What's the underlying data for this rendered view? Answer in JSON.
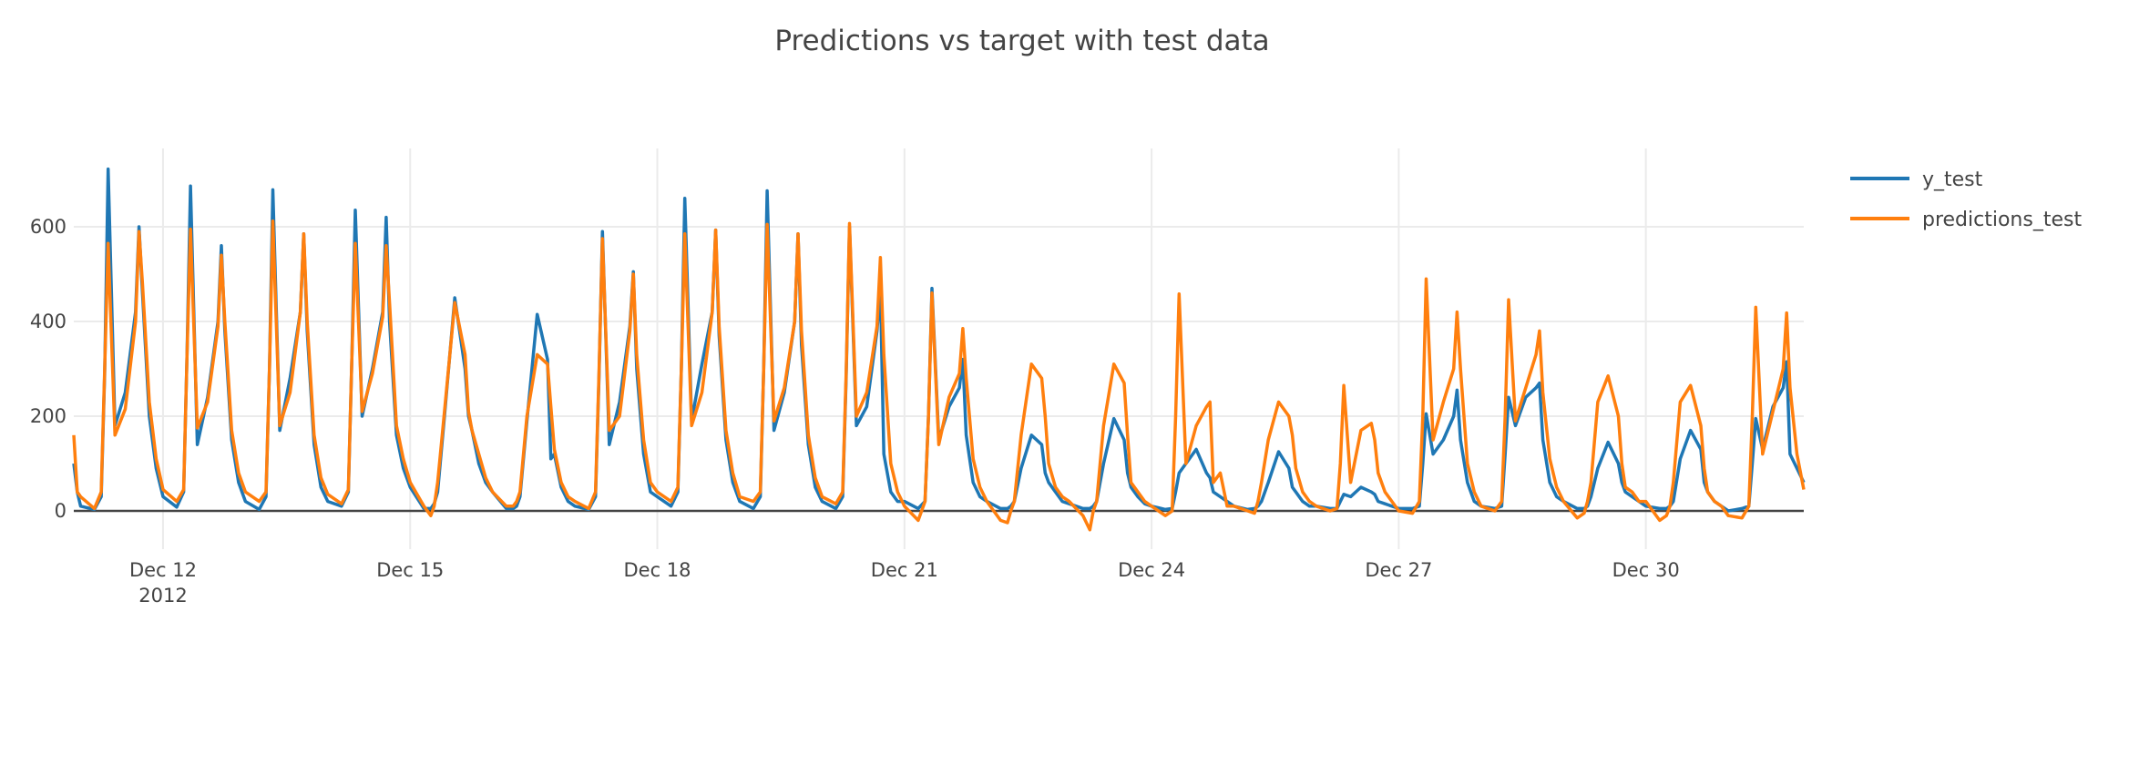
{
  "chart_data": {
    "type": "line",
    "title": "Predictions vs target with test data",
    "xaxis": {
      "type": "date",
      "range": [
        "2012-12-10 22:00",
        "2012-12-31 22:00"
      ],
      "grid": true,
      "ticks": [
        {
          "date": "2012-12-12",
          "label": "Dec 12",
          "sublabel": "2012"
        },
        {
          "date": "2012-12-15",
          "label": "Dec 15"
        },
        {
          "date": "2012-12-18",
          "label": "Dec 18"
        },
        {
          "date": "2012-12-21",
          "label": "Dec 21"
        },
        {
          "date": "2012-12-24",
          "label": "Dec 24"
        },
        {
          "date": "2012-12-27",
          "label": "Dec 27"
        },
        {
          "date": "2012-12-30",
          "label": "Dec 30"
        }
      ]
    },
    "yaxis": {
      "range": [
        -80,
        765
      ],
      "grid": true,
      "zeroline": true,
      "ticks": [
        {
          "value": 0,
          "label": "0"
        },
        {
          "value": 200,
          "label": "200"
        },
        {
          "value": 400,
          "label": "400"
        },
        {
          "value": 600,
          "label": "600"
        }
      ]
    },
    "legend": {
      "placement": "top-right"
    },
    "series": [
      {
        "name": "y_test",
        "color": "#1f77b4"
      },
      {
        "name": "predictions_test",
        "color": "#ff7f0e"
      }
    ],
    "hours": [
      0,
      4,
      6,
      7,
      8,
      10,
      13,
      16,
      17,
      18,
      20,
      22
    ],
    "days": [
      {
        "date": "2012-12-10",
        "hours": [
          22,
          23
        ],
        "y_test": [
          100,
          40
        ],
        "predictions_test": [
          160,
          40
        ]
      },
      {
        "date": "2012-12-11",
        "y_test": [
          10,
          3,
          30,
          290,
          722,
          180,
          250,
          420,
          600,
          460,
          200,
          90
        ],
        "predictions_test": [
          30,
          5,
          40,
          300,
          565,
          160,
          215,
          400,
          590,
          480,
          230,
          110
        ]
      },
      {
        "date": "2012-12-12",
        "y_test": [
          30,
          8,
          40,
          330,
          686,
          140,
          240,
          400,
          560,
          380,
          150,
          60
        ],
        "predictions_test": [
          45,
          20,
          45,
          330,
          595,
          175,
          230,
          390,
          540,
          400,
          170,
          80
        ]
      },
      {
        "date": "2012-12-13",
        "y_test": [
          20,
          3,
          30,
          300,
          678,
          170,
          280,
          420,
          585,
          380,
          140,
          50
        ],
        "predictions_test": [
          40,
          20,
          40,
          300,
          612,
          180,
          250,
          420,
          585,
          400,
          160,
          70
        ]
      },
      {
        "date": "2012-12-14",
        "y_test": [
          20,
          10,
          40,
          320,
          635,
          200,
          300,
          420,
          620,
          400,
          160,
          90
        ],
        "predictions_test": [
          35,
          15,
          45,
          320,
          565,
          210,
          290,
          410,
          560,
          440,
          180,
          110
        ]
      },
      {
        "date": "2012-12-15",
        "y_test": [
          50,
          5,
          5,
          15,
          40,
          200,
          450,
          300,
          200,
          170,
          100,
          60
        ],
        "predictions_test": [
          60,
          10,
          -10,
          10,
          60,
          210,
          440,
          330,
          210,
          170,
          120,
          70
        ]
      },
      {
        "date": "2012-12-16",
        "y_test": [
          40,
          5,
          5,
          10,
          30,
          190,
          415,
          320,
          110,
          120,
          50,
          20
        ],
        "predictions_test": [
          40,
          10,
          10,
          20,
          40,
          200,
          330,
          310,
          220,
          130,
          60,
          30
        ]
      },
      {
        "date": "2012-12-17",
        "y_test": [
          10,
          3,
          30,
          280,
          590,
          140,
          230,
          390,
          505,
          300,
          120,
          40
        ],
        "predictions_test": [
          20,
          5,
          40,
          290,
          575,
          170,
          200,
          380,
          500,
          330,
          150,
          60
        ]
      },
      {
        "date": "2012-12-18",
        "y_test": [
          30,
          10,
          40,
          300,
          660,
          190,
          310,
          420,
          593,
          370,
          150,
          60
        ],
        "predictions_test": [
          40,
          20,
          50,
          300,
          585,
          180,
          250,
          420,
          593,
          390,
          170,
          80
        ]
      },
      {
        "date": "2012-12-19",
        "y_test": [
          20,
          5,
          30,
          300,
          676,
          170,
          250,
          400,
          585,
          350,
          140,
          50
        ],
        "predictions_test": [
          30,
          20,
          40,
          300,
          605,
          190,
          260,
          400,
          585,
          380,
          160,
          70
        ]
      },
      {
        "date": "2012-12-20",
        "y_test": [
          20,
          5,
          30,
          280,
          600,
          180,
          220,
          380,
          470,
          120,
          40,
          20
        ],
        "predictions_test": [
          30,
          15,
          40,
          290,
          607,
          200,
          250,
          390,
          535,
          330,
          100,
          40
        ]
      },
      {
        "date": "2012-12-21",
        "y_test": [
          20,
          5,
          20,
          200,
          470,
          150,
          220,
          260,
          320,
          160,
          60,
          30
        ],
        "predictions_test": [
          10,
          -20,
          20,
          200,
          460,
          140,
          240,
          290,
          385,
          280,
          110,
          50
        ]
      },
      {
        "date": "2012-12-22",
        "y_test": [
          20,
          5,
          5,
          10,
          20,
          90,
          160,
          140,
          80,
          60,
          40,
          20
        ],
        "predictions_test": [
          20,
          -20,
          -25,
          0,
          20,
          160,
          310,
          280,
          200,
          100,
          50,
          30
        ]
      },
      {
        "date": "2012-12-23",
        "y_test": [
          15,
          5,
          5,
          10,
          20,
          100,
          195,
          150,
          80,
          50,
          30,
          15
        ],
        "predictions_test": [
          20,
          -10,
          -40,
          0,
          20,
          180,
          310,
          270,
          160,
          60,
          40,
          20
        ]
      },
      {
        "date": "2012-12-24",
        "y_test": [
          10,
          3,
          5,
          40,
          80,
          100,
          130,
          80,
          70,
          40,
          30,
          20
        ],
        "predictions_test": [
          10,
          -10,
          0,
          200,
          458,
          100,
          180,
          220,
          230,
          60,
          80,
          10
        ]
      },
      {
        "date": "2012-12-25",
        "y_test": [
          10,
          3,
          5,
          10,
          20,
          60,
          125,
          90,
          50,
          40,
          20,
          10
        ],
        "predictions_test": [
          10,
          0,
          -5,
          20,
          60,
          150,
          230,
          200,
          160,
          90,
          40,
          20
        ]
      },
      {
        "date": "2012-12-26",
        "y_test": [
          10,
          5,
          5,
          20,
          35,
          30,
          50,
          40,
          35,
          20,
          15,
          10
        ],
        "predictions_test": [
          10,
          0,
          5,
          100,
          265,
          60,
          170,
          185,
          150,
          80,
          40,
          20
        ]
      },
      {
        "date": "2012-12-27",
        "y_test": [
          5,
          5,
          10,
          100,
          205,
          120,
          150,
          200,
          255,
          150,
          60,
          20
        ],
        "predictions_test": [
          0,
          -5,
          20,
          200,
          490,
          150,
          230,
          300,
          420,
          300,
          100,
          40
        ]
      },
      {
        "date": "2012-12-28",
        "y_test": [
          10,
          5,
          10,
          120,
          240,
          180,
          240,
          260,
          270,
          150,
          60,
          30
        ],
        "predictions_test": [
          10,
          0,
          20,
          200,
          446,
          190,
          260,
          330,
          380,
          250,
          110,
          50
        ]
      },
      {
        "date": "2012-12-29",
        "y_test": [
          20,
          5,
          5,
          10,
          30,
          90,
          145,
          100,
          60,
          40,
          30,
          20
        ],
        "predictions_test": [
          20,
          -15,
          -5,
          20,
          60,
          230,
          285,
          200,
          100,
          50,
          40,
          20
        ]
      },
      {
        "date": "2012-12-30",
        "y_test": [
          10,
          5,
          5,
          10,
          20,
          110,
          170,
          130,
          60,
          40,
          20,
          10
        ],
        "predictions_test": [
          20,
          -20,
          -10,
          10,
          60,
          230,
          265,
          180,
          90,
          40,
          20,
          10
        ]
      },
      {
        "date": "2012-12-31",
        "y_test": [
          0,
          5,
          10,
          100,
          195,
          130,
          220,
          260,
          315,
          120,
          90,
          60
        ],
        "predictions_test": [
          -10,
          -15,
          10,
          200,
          430,
          120,
          210,
          300,
          418,
          260,
          120,
          45
        ]
      }
    ]
  }
}
